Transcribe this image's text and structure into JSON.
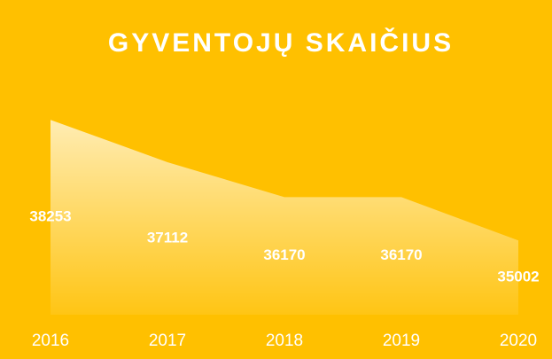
{
  "chart_data": {
    "type": "area",
    "title": "GYVENTOJŲ SKAIČIUS",
    "categories": [
      "2016",
      "2017",
      "2018",
      "2019",
      "2020"
    ],
    "values": [
      38253,
      37112,
      36170,
      36170,
      35002
    ],
    "color": "#ffffff",
    "background": "#ffc000",
    "ylim": [
      33000,
      39000
    ],
    "data_labels": true
  }
}
